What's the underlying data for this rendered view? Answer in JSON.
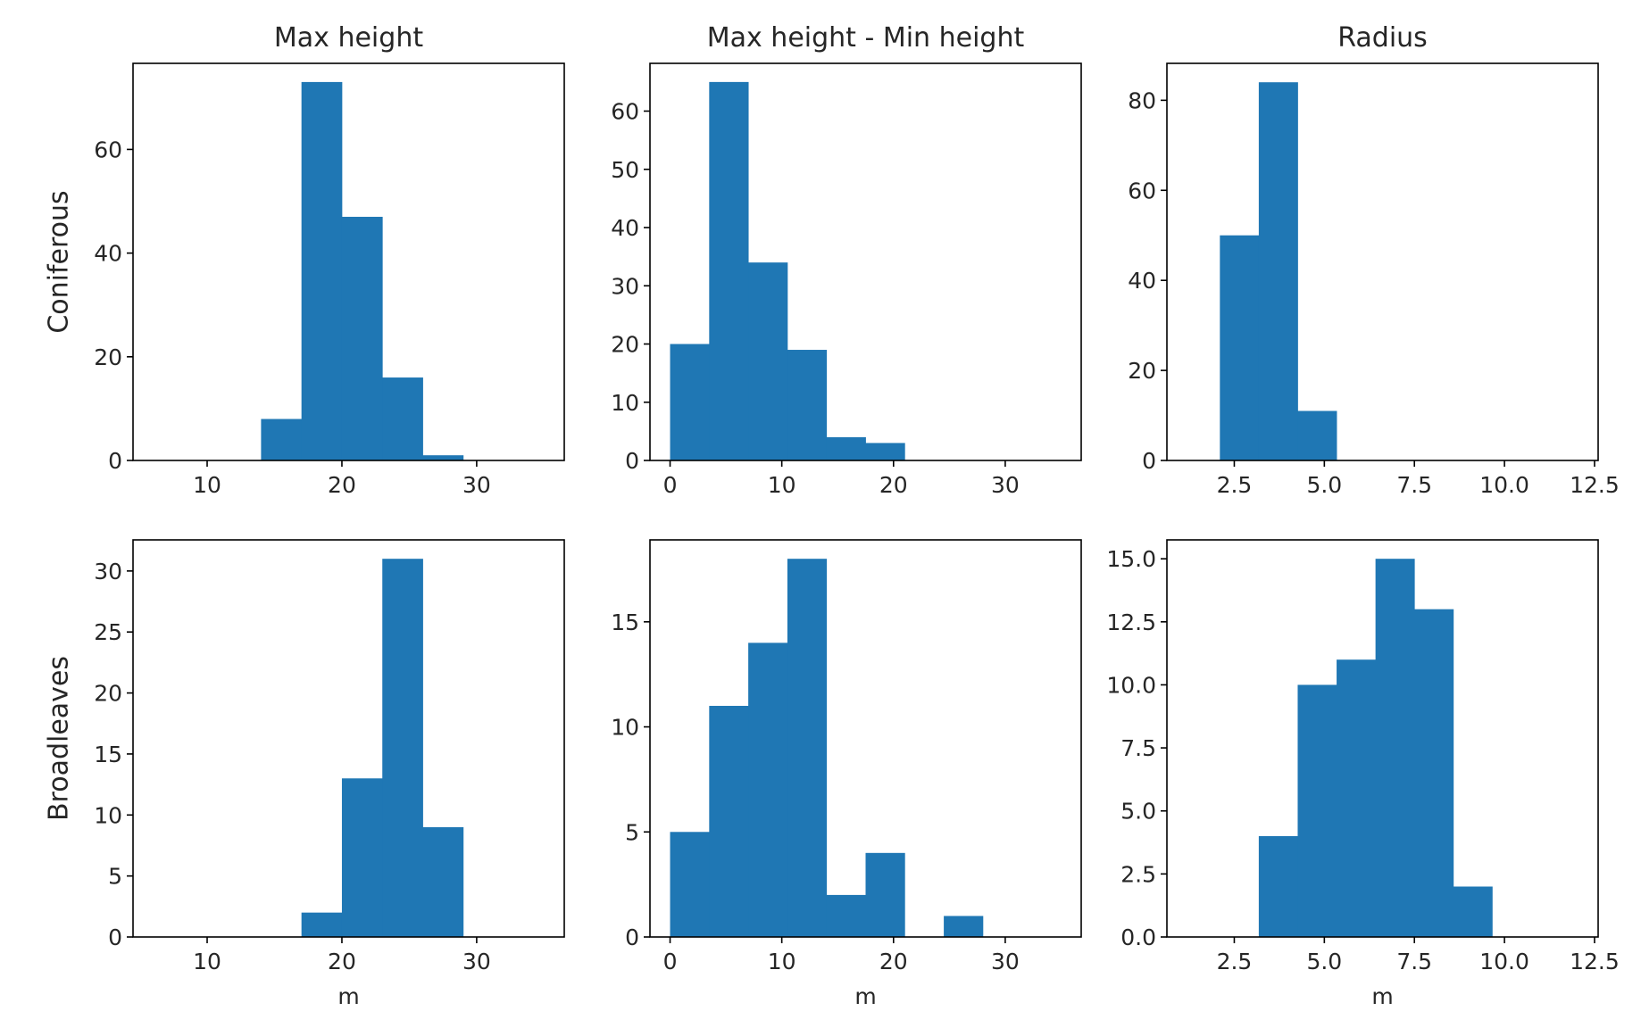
{
  "figure": {
    "bar_color": "#1f77b4",
    "axes_color": "#000000",
    "text_color": "#262626"
  },
  "chart_data": [
    {
      "type": "bar",
      "histogram": true,
      "row_label": "Coniferous",
      "title": "Max height",
      "xlabel": "",
      "xlim": [
        4.5,
        36.5
      ],
      "ylim": [
        0,
        76.6
      ],
      "xticks": [
        10,
        20,
        30
      ],
      "xtick_labels": [
        "10",
        "20",
        "30"
      ],
      "yticks": [
        0,
        20,
        40,
        60
      ],
      "ytick_labels": [
        "0",
        "20",
        "40",
        "60"
      ],
      "bin_edges": [
        14.0,
        17.0,
        20.0,
        23.0,
        26.0,
        29.0
      ],
      "values": [
        8,
        73,
        47,
        16,
        1
      ]
    },
    {
      "type": "bar",
      "histogram": true,
      "row_label": "",
      "title": "Max height - Min height",
      "xlabel": "",
      "xlim": [
        -1.8,
        36.8
      ],
      "ylim": [
        0,
        68.2
      ],
      "xticks": [
        0,
        10,
        20,
        30
      ],
      "xtick_labels": [
        "0",
        "10",
        "20",
        "30"
      ],
      "yticks": [
        0,
        10,
        20,
        30,
        40,
        50,
        60
      ],
      "ytick_labels": [
        "0",
        "10",
        "20",
        "30",
        "40",
        "50",
        "60"
      ],
      "bin_edges": [
        0.0,
        3.5,
        7.0,
        10.5,
        14.0,
        17.5,
        21.0
      ],
      "values": [
        20,
        65,
        34,
        19,
        4,
        3
      ]
    },
    {
      "type": "bar",
      "histogram": true,
      "row_label": "",
      "title": "Radius",
      "xlabel": "",
      "xlim": [
        0.63,
        12.6
      ],
      "ylim": [
        0,
        88.2
      ],
      "xticks": [
        2.5,
        5.0,
        7.5,
        10.0,
        12.5
      ],
      "xtick_labels": [
        "2.5",
        "5.0",
        "7.5",
        "10.0",
        "12.5"
      ],
      "yticks": [
        0,
        20,
        40,
        60,
        80
      ],
      "ytick_labels": [
        "0",
        "20",
        "40",
        "60",
        "80"
      ],
      "bin_edges": [
        2.1,
        3.18,
        4.26,
        5.34
      ],
      "values": [
        50,
        84,
        11
      ]
    },
    {
      "type": "bar",
      "histogram": true,
      "row_label": "Broadleaves",
      "title": "",
      "xlabel": "m",
      "xlim": [
        4.5,
        36.5
      ],
      "ylim": [
        0,
        32.55
      ],
      "xticks": [
        10,
        20,
        30
      ],
      "xtick_labels": [
        "10",
        "20",
        "30"
      ],
      "yticks": [
        0,
        5,
        10,
        15,
        20,
        25,
        30
      ],
      "ytick_labels": [
        "0",
        "5",
        "10",
        "15",
        "20",
        "25",
        "30"
      ],
      "bin_edges": [
        17.0,
        20.0,
        23.0,
        26.0,
        29.0
      ],
      "values": [
        2,
        13,
        31,
        9
      ]
    },
    {
      "type": "bar",
      "histogram": true,
      "row_label": "",
      "title": "",
      "xlabel": "m",
      "xlim": [
        -1.8,
        36.8
      ],
      "ylim": [
        0,
        18.9
      ],
      "xticks": [
        0,
        10,
        20,
        30
      ],
      "xtick_labels": [
        "0",
        "10",
        "20",
        "30"
      ],
      "yticks": [
        0,
        5,
        10,
        15
      ],
      "ytick_labels": [
        "0",
        "5",
        "10",
        "15"
      ],
      "bin_edges": [
        0.0,
        3.5,
        7.0,
        10.5,
        14.0,
        17.5,
        21.0,
        24.5,
        28.0
      ],
      "values": [
        5,
        11,
        14,
        18,
        2,
        4,
        0,
        1
      ]
    },
    {
      "type": "bar",
      "histogram": true,
      "row_label": "",
      "title": "",
      "xlabel": "m",
      "xlim": [
        0.63,
        12.6
      ],
      "ylim": [
        0,
        15.75
      ],
      "xticks": [
        2.5,
        5.0,
        7.5,
        10.0,
        12.5
      ],
      "xtick_labels": [
        "2.5",
        "5.0",
        "7.5",
        "10.0",
        "12.5"
      ],
      "yticks": [
        0,
        2.5,
        5.0,
        7.5,
        10.0,
        12.5,
        15.0
      ],
      "ytick_labels": [
        "0.0",
        "2.5",
        "5.0",
        "7.5",
        "10.0",
        "12.5",
        "15.0"
      ],
      "bin_edges": [
        3.18,
        4.26,
        5.34,
        6.42,
        7.5,
        8.58,
        9.66
      ],
      "values": [
        4,
        10,
        11,
        15,
        13,
        2
      ]
    }
  ]
}
